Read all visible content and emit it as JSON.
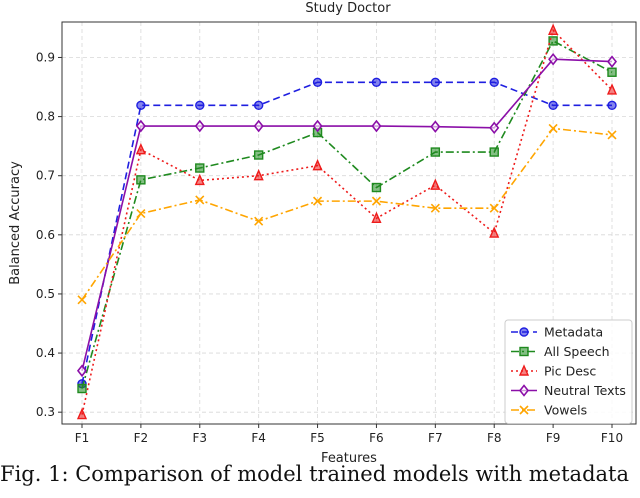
{
  "chart_data": {
    "type": "line",
    "title": "Study Doctor",
    "xlabel": "Features",
    "ylabel": "Balanced Accuracy",
    "categories": [
      "F1",
      "F2",
      "F3",
      "F4",
      "F5",
      "F6",
      "F7",
      "F8",
      "F9",
      "F10"
    ],
    "ylim": [
      0.28,
      0.96
    ],
    "yticks": [
      "0.3",
      "0.4",
      "0.5",
      "0.6",
      "0.7",
      "0.8",
      "0.9"
    ],
    "grid": true,
    "legend_position": "lower-right",
    "series": [
      {
        "name": "Metadata",
        "color": "#1f1fe0",
        "dash": "dashed",
        "marker": "circle",
        "values": [
          0.348,
          0.819,
          0.819,
          0.819,
          0.858,
          0.858,
          0.858,
          0.858,
          0.819,
          0.819
        ]
      },
      {
        "name": "All Speech",
        "color": "#1f8a1f",
        "dash": "dashdot",
        "marker": "square",
        "values": [
          0.34,
          0.693,
          0.713,
          0.735,
          0.773,
          0.68,
          0.74,
          0.74,
          0.928,
          0.875
        ]
      },
      {
        "name": "Pic Desc",
        "color": "#ee1c1c",
        "dash": "dotted",
        "marker": "triangle",
        "values": [
          0.296,
          0.744,
          0.692,
          0.7,
          0.717,
          0.628,
          0.684,
          0.603,
          0.946,
          0.845
        ]
      },
      {
        "name": "Neutral Texts",
        "color": "#8b0fa8",
        "dash": "solid",
        "marker": "diamond",
        "values": [
          0.37,
          0.784,
          0.784,
          0.784,
          0.784,
          0.784,
          0.783,
          0.781,
          0.897,
          0.893
        ]
      },
      {
        "name": "Vowels",
        "color": "#ffa500",
        "dash": "dashdot",
        "marker": "x",
        "values": [
          0.49,
          0.636,
          0.659,
          0.623,
          0.657,
          0.657,
          0.645,
          0.645,
          0.78,
          0.769
        ]
      }
    ]
  },
  "caption": "Fig. 1: Comparison of model  trained models with metadata"
}
